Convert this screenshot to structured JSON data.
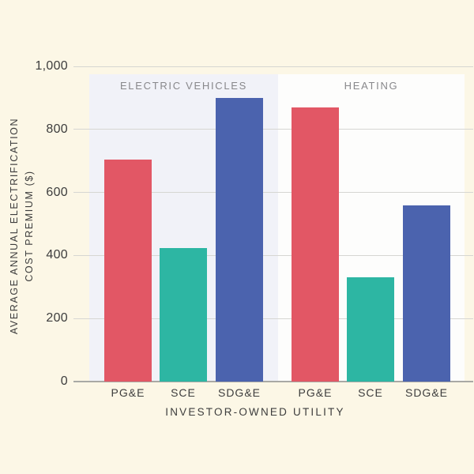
{
  "colors": {
    "background": "#FCF7E6",
    "panel_electric_vehicles": "#F1F2F8",
    "panel_heating": "#FDFDFC",
    "gridline": "#D6D6D2",
    "baseline": "#A9A9A5",
    "tick_text": "#3D3D3D",
    "group_label_text": "#88888B"
  },
  "chart_data": {
    "type": "bar",
    "title": "",
    "xlabel": "INVESTOR-OWNED UTILITY",
    "ylabel_line1": "AVERAGE ANNUAL ELECTRIFICATION",
    "ylabel_line2": "COST PREMIUM ($)",
    "ylim": [
      0,
      1000
    ],
    "yticks": [
      0,
      200,
      400,
      600,
      800,
      1000
    ],
    "ytick_labels": [
      "0",
      "200",
      "400",
      "600",
      "800",
      "1,000"
    ],
    "categories": [
      "PG&E",
      "SCE",
      "SDG&E"
    ],
    "bar_colors": [
      "#E25765",
      "#2DB6A3",
      "#4B63AE"
    ],
    "groups": [
      {
        "label": "ELECTRIC VEHICLES",
        "values": [
          705,
          423,
          900
        ]
      },
      {
        "label": "HEATING",
        "values": [
          870,
          330,
          560
        ]
      }
    ],
    "grid": true,
    "legend": false
  }
}
